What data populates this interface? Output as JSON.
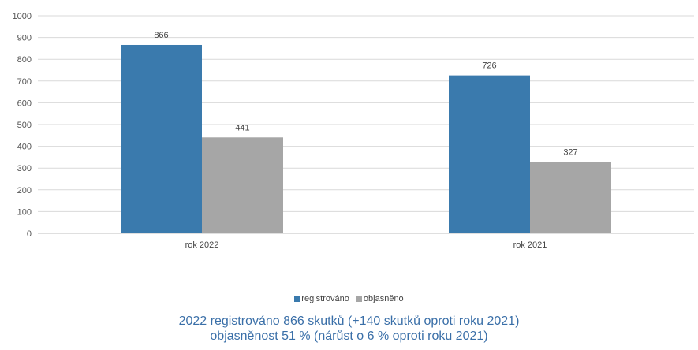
{
  "chart_data": {
    "type": "bar",
    "categories": [
      "rok 2022",
      "rok 2021"
    ],
    "series": [
      {
        "name": "registrováno",
        "values": [
          866,
          726
        ],
        "color": "#3a7aad"
      },
      {
        "name": "objasněno",
        "values": [
          441,
          327
        ],
        "color": "#a6a6a6"
      }
    ],
    "ylim": [
      0,
      1000
    ],
    "yticks": [
      0,
      100,
      200,
      300,
      400,
      500,
      600,
      700,
      800,
      900,
      1000
    ],
    "grid": true,
    "legend_position": "bottom"
  },
  "caption": {
    "line1": "2022 registrováno 866 skutků (+140 skutků oproti roku 2021)",
    "line2": "objasněnost 51 % (nárůst o 6 % oproti roku 2021)"
  }
}
